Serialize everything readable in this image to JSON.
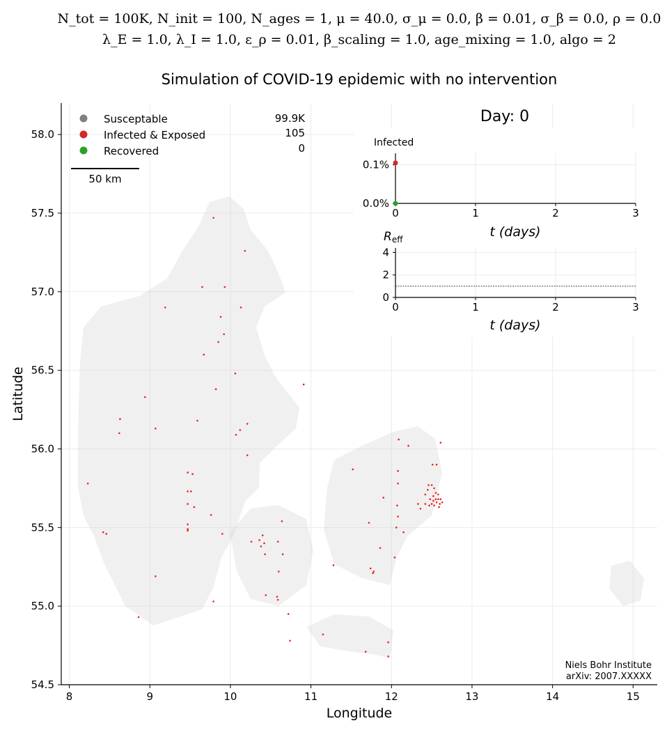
{
  "header": {
    "params_line1": "N_tot = 100K, N_init = 100, N_ages = 1, μ = 40.0, σ_μ = 0.0, β = 0.01, σ_β = 0.0, ρ = 0.0",
    "params_line2": "λ_E = 1.0, λ_I = 1.0, ε_ρ = 0.01, β_scaling = 1.0, age_mixing = 1.0, algo = 2",
    "title": "Simulation of COVID-19 epidemic with no intervention"
  },
  "day_label": "Day: 0",
  "legend": [
    {
      "label": "Susceptable",
      "value": "99.9K",
      "color": "#808080"
    },
    {
      "label": "Infected & Exposed",
      "value": "105",
      "color": "#d62728"
    },
    {
      "label": "Recovered",
      "value": "0",
      "color": "#2ca02c"
    }
  ],
  "scalebar_label": "50 km",
  "credit": {
    "line1": "Niels Bohr Institute",
    "line2": "arXiv: 2007.XXXXX"
  },
  "colors": {
    "susceptible_dot": "#d4d4d4",
    "infected_dot": "#e8231c",
    "grid": "#ebebeb",
    "axis": "#000000"
  },
  "chart_data": [
    {
      "type": "scatter",
      "xlabel": "Longitude",
      "ylabel": "Latitude",
      "xlim": [
        7.9,
        15.3
      ],
      "ylim": [
        54.5,
        58.2
      ],
      "xticks": [
        "8",
        "9",
        "10",
        "11",
        "12",
        "13",
        "14",
        "15"
      ],
      "yticks": [
        "54.5",
        "55.0",
        "55.5",
        "56.0",
        "56.5",
        "57.0",
        "57.5",
        "58.0"
      ],
      "grid": true,
      "infected_points": [
        [
          9.79,
          57.47
        ],
        [
          10.18,
          57.26
        ],
        [
          9.65,
          57.03
        ],
        [
          9.93,
          57.03
        ],
        [
          9.19,
          56.9
        ],
        [
          10.13,
          56.9
        ],
        [
          9.88,
          56.84
        ],
        [
          9.92,
          56.73
        ],
        [
          9.85,
          56.68
        ],
        [
          9.67,
          56.6
        ],
        [
          10.06,
          56.48
        ],
        [
          10.91,
          56.41
        ],
        [
          9.82,
          56.38
        ],
        [
          8.94,
          56.33
        ],
        [
          8.63,
          56.19
        ],
        [
          9.59,
          56.18
        ],
        [
          10.21,
          56.16
        ],
        [
          9.07,
          56.13
        ],
        [
          10.12,
          56.12
        ],
        [
          10.07,
          56.09
        ],
        [
          8.62,
          56.1
        ],
        [
          10.21,
          55.96
        ],
        [
          8.23,
          55.78
        ],
        [
          9.47,
          55.85
        ],
        [
          9.53,
          55.84
        ],
        [
          9.47,
          55.73
        ],
        [
          9.51,
          55.73
        ],
        [
          9.55,
          55.63
        ],
        [
          9.47,
          55.65
        ],
        [
          9.76,
          55.58
        ],
        [
          9.47,
          55.52
        ],
        [
          9.47,
          55.49
        ],
        [
          9.47,
          55.48
        ],
        [
          8.42,
          55.47
        ],
        [
          8.46,
          55.46
        ],
        [
          9.9,
          55.46
        ],
        [
          10.26,
          55.41
        ],
        [
          10.36,
          55.42
        ],
        [
          10.4,
          55.45
        ],
        [
          10.42,
          55.4
        ],
        [
          10.38,
          55.38
        ],
        [
          10.59,
          55.41
        ],
        [
          10.64,
          55.54
        ],
        [
          10.43,
          55.33
        ],
        [
          10.65,
          55.33
        ],
        [
          10.6,
          55.22
        ],
        [
          9.07,
          55.19
        ],
        [
          10.44,
          55.07
        ],
        [
          10.58,
          55.06
        ],
        [
          10.59,
          55.04
        ],
        [
          9.79,
          55.03
        ],
        [
          10.72,
          54.95
        ],
        [
          8.86,
          54.93
        ],
        [
          10.74,
          54.78
        ],
        [
          11.15,
          54.82
        ],
        [
          11.68,
          54.71
        ],
        [
          11.96,
          54.77
        ],
        [
          11.96,
          54.68
        ],
        [
          11.28,
          55.26
        ],
        [
          11.52,
          55.87
        ],
        [
          11.74,
          55.24
        ],
        [
          11.77,
          55.21
        ],
        [
          11.78,
          55.22
        ],
        [
          11.86,
          55.37
        ],
        [
          12.04,
          55.31
        ],
        [
          12.06,
          55.5
        ],
        [
          12.08,
          55.57
        ],
        [
          12.07,
          55.64
        ],
        [
          11.72,
          55.53
        ],
        [
          11.9,
          55.69
        ],
        [
          12.15,
          55.47
        ],
        [
          12.21,
          56.02
        ],
        [
          12.09,
          56.06
        ],
        [
          12.61,
          56.04
        ],
        [
          12.51,
          55.9
        ],
        [
          12.56,
          55.9
        ],
        [
          12.08,
          55.86
        ],
        [
          12.08,
          55.78
        ],
        [
          12.33,
          55.65
        ],
        [
          12.36,
          55.62
        ],
        [
          12.42,
          55.65
        ],
        [
          12.42,
          55.71
        ],
        [
          12.45,
          55.74
        ],
        [
          12.46,
          55.77
        ],
        [
          12.5,
          55.77
        ],
        [
          12.53,
          55.75
        ],
        [
          12.48,
          55.68
        ],
        [
          12.5,
          55.65
        ],
        [
          12.52,
          55.7
        ],
        [
          12.55,
          55.68
        ],
        [
          12.56,
          55.66
        ],
        [
          12.58,
          55.71
        ],
        [
          12.58,
          55.68
        ],
        [
          12.6,
          55.65
        ],
        [
          12.59,
          55.63
        ],
        [
          12.63,
          55.66
        ],
        [
          12.61,
          55.68
        ],
        [
          12.53,
          55.64
        ],
        [
          12.47,
          55.64
        ],
        [
          12.52,
          55.67
        ],
        [
          12.55,
          55.72
        ]
      ]
    },
    {
      "type": "line",
      "title": "Infected",
      "xlabel": "t (days)",
      "xlim": [
        0,
        3
      ],
      "xticks": [
        "0",
        "1",
        "2",
        "3"
      ],
      "yticks": [
        "0.0%",
        "0.1%"
      ],
      "ylim": [
        0,
        0.0013
      ],
      "series": [
        {
          "name": "Infected",
          "color": "#d62728",
          "x": [
            0
          ],
          "y": [
            0.00105
          ]
        },
        {
          "name": "Recovered",
          "color": "#2ca02c",
          "x": [
            0
          ],
          "y": [
            0.0
          ]
        }
      ]
    },
    {
      "type": "line",
      "title": "R_eff",
      "xlabel": "t (days)",
      "xlim": [
        0,
        3
      ],
      "xticks": [
        "0",
        "1",
        "2",
        "3"
      ],
      "yticks": [
        "0",
        "2",
        "4"
      ],
      "ylim": [
        0,
        4.4
      ],
      "reference_line": 1.0
    }
  ]
}
